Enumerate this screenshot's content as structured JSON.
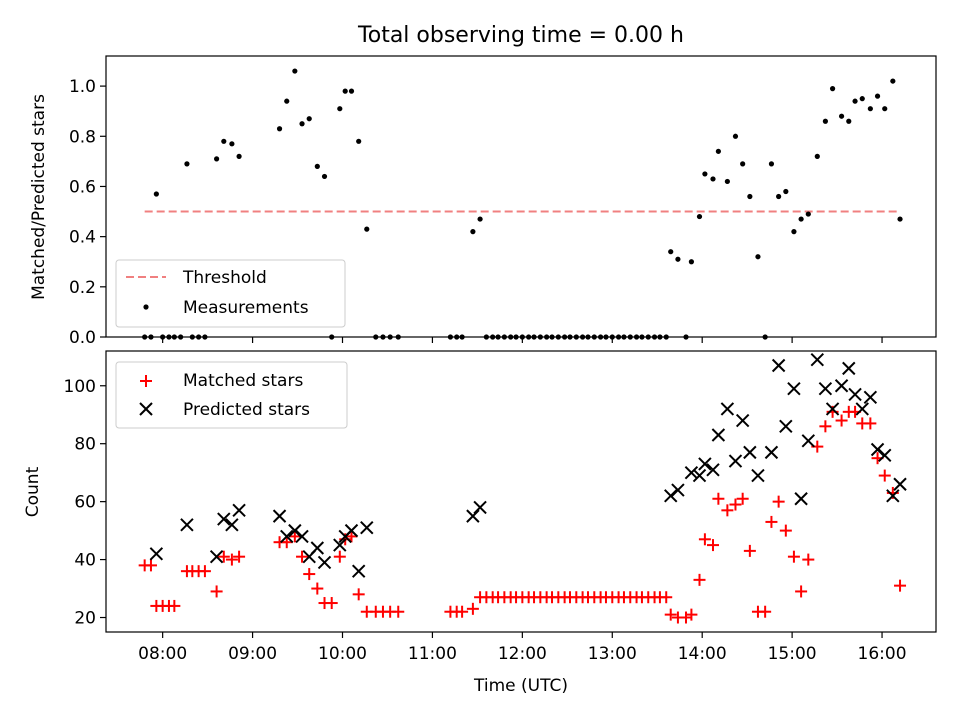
{
  "chart_data": [
    {
      "type": "scatter",
      "title": "Total observing time = 0.00 h",
      "xlabel": "",
      "ylabel": "Matched/Predicted stars",
      "xlim": [
        7.37,
        16.6
      ],
      "ylim": [
        0,
        1.12
      ],
      "yticks": [
        0.0,
        0.2,
        0.4,
        0.6,
        0.8,
        1.0
      ],
      "ytick_labels": [
        "0.0",
        "0.2",
        "0.4",
        "0.6",
        "0.8",
        "1.0"
      ],
      "legend_position": "lower-left",
      "threshold": {
        "name": "Threshold",
        "value": 0.5,
        "x_range": [
          7.8,
          16.2
        ],
        "color": "#f08080",
        "style": "dashed"
      },
      "series": [
        {
          "name": "Measurements",
          "color": "#000000",
          "marker": "dot",
          "points": [
            [
              7.8,
              0
            ],
            [
              7.87,
              0
            ],
            [
              7.93,
              0.57
            ],
            [
              8.0,
              0
            ],
            [
              8.07,
              0
            ],
            [
              8.13,
              0
            ],
            [
              8.2,
              0
            ],
            [
              8.27,
              0.69
            ],
            [
              8.33,
              0
            ],
            [
              8.4,
              0
            ],
            [
              8.47,
              0
            ],
            [
              8.6,
              0.71
            ],
            [
              8.68,
              0.78
            ],
            [
              8.77,
              0.77
            ],
            [
              8.85,
              0.72
            ],
            [
              9.3,
              0.83
            ],
            [
              9.38,
              0.94
            ],
            [
              9.47,
              1.06
            ],
            [
              9.55,
              0.85
            ],
            [
              9.63,
              0.87
            ],
            [
              9.72,
              0.68
            ],
            [
              9.8,
              0.64
            ],
            [
              9.88,
              0
            ],
            [
              9.97,
              0.91
            ],
            [
              10.03,
              0.98
            ],
            [
              10.1,
              0.98
            ],
            [
              10.18,
              0.78
            ],
            [
              10.27,
              0.43
            ],
            [
              10.37,
              0
            ],
            [
              10.45,
              0
            ],
            [
              10.53,
              0
            ],
            [
              10.62,
              0
            ],
            [
              11.2,
              0
            ],
            [
              11.27,
              0
            ],
            [
              11.33,
              0
            ],
            [
              11.45,
              0.42
            ],
            [
              11.53,
              0.47
            ],
            [
              11.6,
              0
            ],
            [
              11.67,
              0
            ],
            [
              11.73,
              0
            ],
            [
              11.8,
              0
            ],
            [
              11.87,
              0
            ],
            [
              11.93,
              0
            ],
            [
              12.0,
              0
            ],
            [
              12.07,
              0
            ],
            [
              12.13,
              0
            ],
            [
              12.2,
              0
            ],
            [
              12.27,
              0
            ],
            [
              12.33,
              0
            ],
            [
              12.4,
              0
            ],
            [
              12.47,
              0
            ],
            [
              12.53,
              0
            ],
            [
              12.6,
              0
            ],
            [
              12.67,
              0
            ],
            [
              12.73,
              0
            ],
            [
              12.8,
              0
            ],
            [
              12.87,
              0
            ],
            [
              12.93,
              0
            ],
            [
              13.0,
              0
            ],
            [
              13.07,
              0
            ],
            [
              13.13,
              0
            ],
            [
              13.2,
              0
            ],
            [
              13.27,
              0
            ],
            [
              13.33,
              0
            ],
            [
              13.4,
              0
            ],
            [
              13.47,
              0
            ],
            [
              13.53,
              0
            ],
            [
              13.6,
              0
            ],
            [
              13.65,
              0.34
            ],
            [
              13.73,
              0.31
            ],
            [
              13.82,
              0
            ],
            [
              13.88,
              0.3
            ],
            [
              13.97,
              0.48
            ],
            [
              14.03,
              0.65
            ],
            [
              14.12,
              0.63
            ],
            [
              14.18,
              0.74
            ],
            [
              14.28,
              0.62
            ],
            [
              14.37,
              0.8
            ],
            [
              14.45,
              0.69
            ],
            [
              14.53,
              0.56
            ],
            [
              14.62,
              0.32
            ],
            [
              14.7,
              0
            ],
            [
              14.77,
              0.69
            ],
            [
              14.85,
              0.56
            ],
            [
              14.93,
              0.58
            ],
            [
              15.02,
              0.42
            ],
            [
              15.1,
              0.47
            ],
            [
              15.18,
              0.49
            ],
            [
              15.28,
              0.72
            ],
            [
              15.37,
              0.86
            ],
            [
              15.45,
              0.99
            ],
            [
              15.55,
              0.88
            ],
            [
              15.63,
              0.86
            ],
            [
              15.7,
              0.94
            ],
            [
              15.78,
              0.95
            ],
            [
              15.87,
              0.91
            ],
            [
              15.95,
              0.96
            ],
            [
              16.03,
              0.91
            ],
            [
              16.12,
              1.02
            ],
            [
              16.2,
              0.47
            ]
          ]
        }
      ]
    },
    {
      "type": "scatter",
      "title": "",
      "xlabel": "Time (UTC)",
      "ylabel": "Count",
      "xlim": [
        7.37,
        16.6
      ],
      "ylim": [
        15,
        112
      ],
      "xticks": [
        8,
        9,
        10,
        11,
        12,
        13,
        14,
        15,
        16
      ],
      "xtick_labels": [
        "08:00",
        "09:00",
        "10:00",
        "11:00",
        "12:00",
        "13:00",
        "14:00",
        "15:00",
        "16:00"
      ],
      "yticks": [
        20,
        40,
        60,
        80,
        100
      ],
      "ytick_labels": [
        "20",
        "40",
        "60",
        "80",
        "100"
      ],
      "legend_position": "top-left",
      "series": [
        {
          "name": "Matched stars",
          "color": "#ff0000",
          "marker": "plus",
          "points": [
            [
              7.8,
              38
            ],
            [
              7.87,
              38
            ],
            [
              7.93,
              24
            ],
            [
              8.0,
              24
            ],
            [
              8.07,
              24
            ],
            [
              8.13,
              24
            ],
            [
              8.27,
              36
            ],
            [
              8.33,
              36
            ],
            [
              8.4,
              36
            ],
            [
              8.47,
              36
            ],
            [
              8.6,
              29
            ],
            [
              8.68,
              41
            ],
            [
              8.77,
              40
            ],
            [
              8.85,
              41
            ],
            [
              9.3,
              46
            ],
            [
              9.38,
              46
            ],
            [
              9.47,
              48
            ],
            [
              9.55,
              41
            ],
            [
              9.63,
              35
            ],
            [
              9.72,
              30
            ],
            [
              9.8,
              25
            ],
            [
              9.88,
              25
            ],
            [
              9.97,
              41
            ],
            [
              10.03,
              47
            ],
            [
              10.1,
              48
            ],
            [
              10.18,
              28
            ],
            [
              10.27,
              22
            ],
            [
              10.37,
              22
            ],
            [
              10.45,
              22
            ],
            [
              10.53,
              22
            ],
            [
              10.62,
              22
            ],
            [
              11.2,
              22
            ],
            [
              11.27,
              22
            ],
            [
              11.33,
              22
            ],
            [
              11.45,
              23
            ],
            [
              11.53,
              27
            ],
            [
              11.6,
              27
            ],
            [
              11.67,
              27
            ],
            [
              11.73,
              27
            ],
            [
              11.8,
              27
            ],
            [
              11.87,
              27
            ],
            [
              11.93,
              27
            ],
            [
              12.0,
              27
            ],
            [
              12.07,
              27
            ],
            [
              12.13,
              27
            ],
            [
              12.2,
              27
            ],
            [
              12.27,
              27
            ],
            [
              12.33,
              27
            ],
            [
              12.4,
              27
            ],
            [
              12.47,
              27
            ],
            [
              12.53,
              27
            ],
            [
              12.6,
              27
            ],
            [
              12.67,
              27
            ],
            [
              12.73,
              27
            ],
            [
              12.8,
              27
            ],
            [
              12.87,
              27
            ],
            [
              12.93,
              27
            ],
            [
              13.0,
              27
            ],
            [
              13.07,
              27
            ],
            [
              13.13,
              27
            ],
            [
              13.2,
              27
            ],
            [
              13.27,
              27
            ],
            [
              13.33,
              27
            ],
            [
              13.4,
              27
            ],
            [
              13.47,
              27
            ],
            [
              13.53,
              27
            ],
            [
              13.6,
              27
            ],
            [
              13.65,
              21
            ],
            [
              13.73,
              20
            ],
            [
              13.82,
              20
            ],
            [
              13.88,
              21
            ],
            [
              13.97,
              33
            ],
            [
              14.03,
              47
            ],
            [
              14.12,
              45
            ],
            [
              14.18,
              61
            ],
            [
              14.28,
              57
            ],
            [
              14.37,
              59
            ],
            [
              14.45,
              61
            ],
            [
              14.53,
              43
            ],
            [
              14.62,
              22
            ],
            [
              14.7,
              22
            ],
            [
              14.77,
              53
            ],
            [
              14.85,
              60
            ],
            [
              14.93,
              50
            ],
            [
              15.02,
              41
            ],
            [
              15.1,
              29
            ],
            [
              15.18,
              40
            ],
            [
              15.28,
              79
            ],
            [
              15.37,
              86
            ],
            [
              15.45,
              91
            ],
            [
              15.55,
              88
            ],
            [
              15.63,
              91
            ],
            [
              15.7,
              91
            ],
            [
              15.78,
              87
            ],
            [
              15.87,
              87
            ],
            [
              15.95,
              75
            ],
            [
              16.03,
              69
            ],
            [
              16.12,
              63
            ],
            [
              16.2,
              31
            ]
          ]
        },
        {
          "name": "Predicted stars",
          "color": "#000000",
          "marker": "x",
          "points": [
            [
              7.93,
              42
            ],
            [
              8.27,
              52
            ],
            [
              8.6,
              41
            ],
            [
              8.68,
              54
            ],
            [
              8.77,
              52
            ],
            [
              8.85,
              57
            ],
            [
              9.3,
              55
            ],
            [
              9.38,
              48
            ],
            [
              9.47,
              50
            ],
            [
              9.55,
              48
            ],
            [
              9.63,
              41
            ],
            [
              9.72,
              44
            ],
            [
              9.8,
              39
            ],
            [
              9.97,
              45
            ],
            [
              10.03,
              48
            ],
            [
              10.1,
              50
            ],
            [
              10.18,
              36
            ],
            [
              10.27,
              51
            ],
            [
              11.45,
              55
            ],
            [
              11.53,
              58
            ],
            [
              13.65,
              62
            ],
            [
              13.73,
              64
            ],
            [
              13.88,
              70
            ],
            [
              13.97,
              69
            ],
            [
              14.03,
              73
            ],
            [
              14.12,
              71
            ],
            [
              14.18,
              83
            ],
            [
              14.28,
              92
            ],
            [
              14.37,
              74
            ],
            [
              14.45,
              88
            ],
            [
              14.53,
              77
            ],
            [
              14.62,
              69
            ],
            [
              14.77,
              77
            ],
            [
              14.85,
              107
            ],
            [
              14.93,
              86
            ],
            [
              15.02,
              99
            ],
            [
              15.1,
              61
            ],
            [
              15.18,
              81
            ],
            [
              15.28,
              109
            ],
            [
              15.37,
              99
            ],
            [
              15.45,
              92
            ],
            [
              15.55,
              100
            ],
            [
              15.63,
              106
            ],
            [
              15.7,
              97
            ],
            [
              15.78,
              92
            ],
            [
              15.87,
              96
            ],
            [
              15.95,
              78
            ],
            [
              16.03,
              76
            ],
            [
              16.12,
              62
            ],
            [
              16.2,
              66
            ]
          ]
        }
      ]
    }
  ]
}
